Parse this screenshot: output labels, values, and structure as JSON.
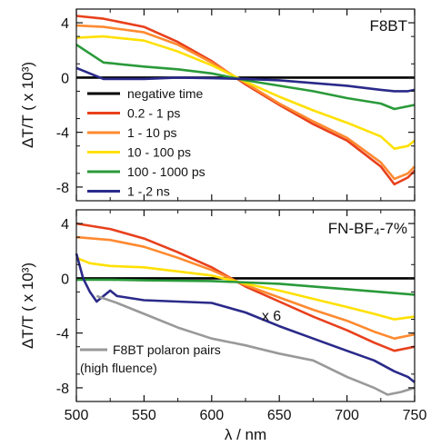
{
  "chart_data": [
    {
      "type": "line",
      "panel_label": "F8BT",
      "ylabel": "ΔT/T ( x 10³)",
      "xlim": [
        500,
        750
      ],
      "ylim": [
        -9,
        5
      ],
      "yticks": [
        4,
        0,
        -4,
        -8
      ],
      "legend_position": "bottom-left",
      "series": [
        {
          "name": "negative time",
          "color": "#000000",
          "x": [
            500,
            750
          ],
          "y": [
            0,
            0
          ]
        },
        {
          "name": "0.2 - 1 ps",
          "color": "#e8401c",
          "x": [
            500,
            520,
            550,
            575,
            600,
            625,
            650,
            675,
            700,
            725,
            735,
            745,
            750
          ],
          "y": [
            4.5,
            4.3,
            3.7,
            2.6,
            1.2,
            -0.5,
            -2.0,
            -3.4,
            -4.6,
            -6.5,
            -7.8,
            -7.3,
            -6.8
          ]
        },
        {
          "name": "1 - 10 ps",
          "color": "#ff8a30",
          "x": [
            500,
            520,
            550,
            575,
            600,
            625,
            650,
            675,
            700,
            725,
            735,
            745,
            750
          ],
          "y": [
            3.8,
            3.7,
            3.3,
            2.4,
            1.1,
            -0.4,
            -1.9,
            -3.2,
            -4.4,
            -6.2,
            -7.4,
            -7.0,
            -6.5
          ]
        },
        {
          "name": "10 - 100 ps",
          "color": "#ffe000",
          "x": [
            500,
            520,
            550,
            575,
            600,
            625,
            650,
            675,
            700,
            725,
            735,
            745,
            750
          ],
          "y": [
            2.9,
            3.0,
            2.7,
            1.9,
            0.9,
            -0.3,
            -1.4,
            -2.4,
            -3.3,
            -4.3,
            -5.2,
            -5.0,
            -4.6
          ]
        },
        {
          "name": "100 - 1000 ps",
          "color": "#2a9a3a",
          "x": [
            500,
            520,
            550,
            575,
            600,
            625,
            650,
            675,
            700,
            725,
            735,
            745,
            750
          ],
          "y": [
            2.4,
            1.1,
            0.8,
            0.6,
            0.3,
            -0.2,
            -0.6,
            -1.0,
            -1.5,
            -1.9,
            -2.3,
            -2.1,
            -2.0
          ]
        },
        {
          "name": "1 - 2 ns",
          "color": "#2a2a8a",
          "x": [
            500,
            520,
            550,
            575,
            600,
            625,
            650,
            675,
            700,
            725,
            735,
            745,
            750
          ],
          "y": [
            0.7,
            -0.1,
            -0.1,
            0.0,
            -0.05,
            -0.1,
            -0.2,
            -0.4,
            -0.6,
            -0.9,
            -1.0,
            -1.0,
            -0.9
          ]
        }
      ]
    },
    {
      "type": "line",
      "panel_label": "FN-BF₄-7%",
      "ylabel": "ΔT/T ( x 10³)",
      "xlabel": "λ / nm",
      "xlim": [
        500,
        750
      ],
      "ylim": [
        -9,
        5
      ],
      "xticks": [
        500,
        550,
        600,
        650,
        700,
        750
      ],
      "yticks": [
        4,
        0,
        -4,
        -8
      ],
      "annotation": "x 6",
      "series": [
        {
          "name": "negative time",
          "color": "#000000",
          "x": [
            500,
            750
          ],
          "y": [
            0,
            0
          ]
        },
        {
          "name": "0.2 - 1 ps",
          "color": "#e8401c",
          "x": [
            500,
            525,
            550,
            575,
            600,
            625,
            650,
            675,
            700,
            720,
            735,
            750
          ],
          "y": [
            4.0,
            3.6,
            2.9,
            1.9,
            0.8,
            -0.6,
            -1.7,
            -2.8,
            -3.8,
            -4.7,
            -5.3,
            -5.0
          ]
        },
        {
          "name": "1 - 10 ps",
          "color": "#ff8a30",
          "x": [
            500,
            525,
            550,
            575,
            600,
            625,
            650,
            675,
            700,
            720,
            735,
            750
          ],
          "y": [
            3.0,
            2.8,
            2.3,
            1.5,
            0.6,
            -0.5,
            -1.4,
            -2.3,
            -3.1,
            -3.9,
            -4.4,
            -4.1
          ]
        },
        {
          "name": "10 - 100 ps",
          "color": "#ffe000",
          "x": [
            500,
            510,
            525,
            550,
            575,
            600,
            625,
            650,
            675,
            700,
            720,
            735,
            750
          ],
          "y": [
            1.5,
            1.1,
            0.9,
            0.8,
            0.5,
            0.2,
            -0.4,
            -0.9,
            -1.5,
            -2.1,
            -2.6,
            -3.0,
            -2.8
          ]
        },
        {
          "name": "100 - 1000 ps",
          "color": "#2a9a3a",
          "x": [
            500,
            525,
            550,
            600,
            650,
            700,
            750
          ],
          "y": [
            -0.1,
            -0.1,
            -0.15,
            -0.2,
            -0.4,
            -0.8,
            -1.2
          ]
        },
        {
          "name": "1 - 2 ns",
          "color": "#2a2a8a",
          "x": [
            500,
            505,
            510,
            515,
            520,
            525,
            530,
            550,
            575,
            600,
            625,
            650,
            675,
            700,
            720,
            735,
            745,
            750
          ],
          "y": [
            1.8,
            0.0,
            -1.0,
            -1.7,
            -1.3,
            -0.9,
            -1.3,
            -1.6,
            -1.7,
            -1.8,
            -2.5,
            -3.5,
            -4.4,
            -5.3,
            -6.0,
            -6.8,
            -7.2,
            -7.6
          ]
        },
        {
          "name": "F8BT polaron pairs (high fluence)",
          "color": "#999999",
          "x": [
            515,
            530,
            550,
            575,
            600,
            625,
            650,
            675,
            700,
            720,
            730,
            740,
            750
          ],
          "y": [
            -1.3,
            -1.8,
            -2.6,
            -3.6,
            -4.4,
            -4.9,
            -5.5,
            -6.0,
            -7.2,
            -8.0,
            -8.5,
            -8.3,
            -8.0
          ]
        }
      ]
    }
  ],
  "legend_entries": [
    "negative time",
    "0.2 - 1 ps",
    "1 - 10 ps",
    "10 - 100 ps",
    "100 - 1000 ps",
    "1 - 2 ns"
  ],
  "polaron_label_line1": "F8BT polaron pairs",
  "polaron_label_line2": "(high fluence)"
}
